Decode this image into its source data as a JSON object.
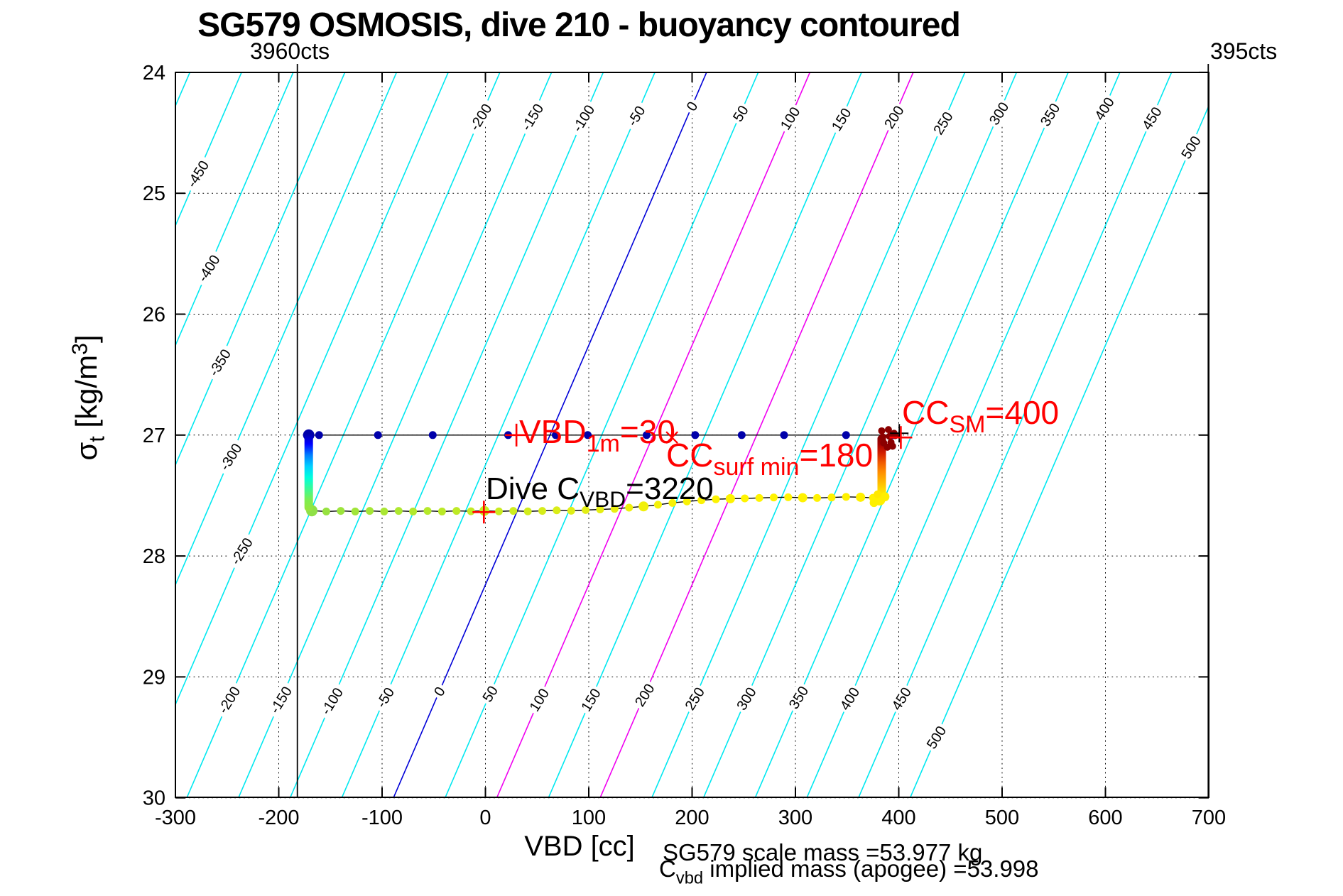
{
  "figure": {
    "title": "SG579 OSMOSIS, dive 210 - buoyancy contoured",
    "xlabel": "VBD [cc]",
    "ylabel_parts": {
      "sym": "σ",
      "sub": "t",
      "mid": " [kg/m",
      "sup": "3",
      "end": "]"
    },
    "footer_line1": "SG579 scale mass =53.977 kg",
    "footer_line2": {
      "main": "C",
      "sub": "vbd",
      "rest": " implied mass (apogee) =53.998"
    }
  },
  "chart_data": {
    "type": "scatter",
    "title": "SG579 OSMOSIS, dive 210 - buoyancy contoured",
    "xlabel": "VBD [cc]",
    "ylabel": "sigma_t [kg/m3]",
    "xlim": [
      -300,
      700
    ],
    "ylim": [
      24,
      30
    ],
    "y_axis_reversed": true,
    "xticks": [
      -300,
      -200,
      -100,
      0,
      100,
      200,
      300,
      400,
      500,
      600,
      700
    ],
    "yticks": [
      24,
      25,
      26,
      27,
      28,
      29,
      30
    ],
    "grid": "dotted",
    "contours": {
      "comment": "buoyancy [g] contours in sigma_t vs VBD space; straight lines; level-0 line passes VBD=214cc at sigma=24 with slope dcc/dsigma",
      "level_min": -500,
      "level_max": 500,
      "level_step": 50,
      "x_offset_sigma24": 214,
      "dcc_dsigma": -50.5,
      "color_default": "#00E8F0",
      "color_zero": "#0000D8",
      "magenta_levels": [
        100,
        200
      ],
      "color_magenta": "#F000F0",
      "labels": [
        {
          "level": -450,
          "sigmas": [
            24.84
          ]
        },
        {
          "level": -400,
          "sigmas": [
            25.62
          ]
        },
        {
          "level": -350,
          "sigmas": [
            26.4
          ]
        },
        {
          "level": -300,
          "sigmas": [
            27.18
          ]
        },
        {
          "level": -250,
          "sigmas": [
            27.96
          ]
        },
        {
          "level": -200,
          "sigmas": [
            24.37,
            29.19
          ]
        },
        {
          "level": -150,
          "sigmas": [
            24.37,
            29.19
          ]
        },
        {
          "level": -100,
          "sigmas": [
            24.38,
            29.2
          ]
        },
        {
          "level": -50,
          "sigmas": [
            24.36,
            29.17
          ]
        },
        {
          "level": 0,
          "sigmas": [
            24.28,
            29.12
          ]
        },
        {
          "level": 50,
          "sigmas": [
            24.34,
            29.14
          ]
        },
        {
          "level": 100,
          "sigmas": [
            24.38,
            29.19
          ]
        },
        {
          "level": 150,
          "sigmas": [
            24.39,
            29.19
          ]
        },
        {
          "level": 200,
          "sigmas": [
            24.37,
            29.15
          ]
        },
        {
          "level": 250,
          "sigmas": [
            24.42,
            29.18
          ]
        },
        {
          "level": 300,
          "sigmas": [
            24.34,
            29.18
          ]
        },
        {
          "level": 350,
          "sigmas": [
            24.35,
            29.17
          ]
        },
        {
          "level": 400,
          "sigmas": [
            24.3,
            29.18
          ]
        },
        {
          "level": 450,
          "sigmas": [
            24.38,
            29.18
          ]
        },
        {
          "level": 500,
          "sigmas": [
            24.62,
            29.5
          ]
        }
      ]
    },
    "reference_lines": [
      {
        "label": "3960cts",
        "cc": -182
      },
      {
        "label": "395cts",
        "cc": 699.5
      }
    ],
    "surface_series": {
      "sigma": 27.0,
      "color": "#0000AA",
      "line_color": "#000000",
      "points_cc": [
        -171,
        -161,
        -104,
        -51,
        22,
        68,
        99,
        156,
        203,
        248,
        289,
        349,
        394
      ]
    },
    "apogee_cluster": {
      "color": "#8B0000",
      "points": [
        [
          383.5,
          26.965
        ],
        [
          390.0,
          26.955
        ],
        [
          395.5,
          26.985
        ],
        [
          384.5,
          27.015
        ],
        [
          391.0,
          27.01
        ],
        [
          396.5,
          27.005
        ],
        [
          385.5,
          27.065
        ],
        [
          392.5,
          27.06
        ],
        [
          389.0,
          27.1
        ],
        [
          394.0,
          27.092
        ]
      ]
    },
    "descent_column": {
      "cc": -171,
      "sigma_from": 26.98,
      "sigma_to": 27.63,
      "gradient": [
        "#0000A0",
        "#0000FF",
        "#0080FF",
        "#00D0FF",
        "#00FFDC",
        "#3CFA96",
        "#7DEE50",
        "#9BE43C"
      ]
    },
    "climb_column": {
      "cc": 383.5,
      "sigma_from": 27.0,
      "sigma_to": 27.53,
      "gradient": [
        "#800000",
        "#A50000",
        "#D42000",
        "#F05A00",
        "#FF8C00",
        "#FFB400",
        "#FFDC00",
        "#FFF000"
      ],
      "base_blobs": [
        [
          381.5,
          27.535,
          8,
          "#FFF000"
        ],
        [
          376.0,
          27.56,
          6,
          "#FDF000"
        ],
        [
          386.5,
          27.51,
          6.5,
          "#FFEE00"
        ],
        [
          379.5,
          27.49,
          5.5,
          "#FFE800"
        ]
      ]
    },
    "dive_series": {
      "line_color": "#000000",
      "points": [
        [
          -168,
          27.625,
          "#8FE046",
          8
        ],
        [
          -154,
          27.632,
          "#97E240",
          5.5
        ],
        [
          -140,
          27.627,
          "#9CE43C",
          5.5
        ],
        [
          -126,
          27.632,
          "#A1E539",
          5.5
        ],
        [
          -112,
          27.627,
          "#A5E636",
          5.5
        ],
        [
          -98,
          27.632,
          "#AAE733",
          5.5
        ],
        [
          -84,
          27.627,
          "#AEE830",
          5.5
        ],
        [
          -70,
          27.632,
          "#B2E82D",
          5.5
        ],
        [
          -56,
          27.627,
          "#B6E92B",
          5.5
        ],
        [
          -42,
          27.632,
          "#BAE928",
          5.5
        ],
        [
          -28,
          27.627,
          "#BEEA26",
          5.5
        ],
        [
          -14,
          27.63,
          "#C2EA24",
          5.5
        ],
        [
          -1,
          27.627,
          "#C6EB22",
          7
        ],
        [
          13,
          27.631,
          "#CAEB20",
          5.5
        ],
        [
          27,
          27.627,
          "#CEEC1E",
          5.5
        ],
        [
          41,
          27.631,
          "#D2EC1C",
          5.5
        ],
        [
          55,
          27.627,
          "#D6ED1A",
          5.5
        ],
        [
          69,
          27.622,
          "#DAED18",
          5.5
        ],
        [
          83,
          27.626,
          "#DEEE16",
          5.5
        ],
        [
          97,
          27.62,
          "#E2EE14",
          5.5
        ],
        [
          111,
          27.615,
          "#E6EF12",
          5.5
        ],
        [
          125,
          27.61,
          "#EAEF10",
          5.5
        ],
        [
          139,
          27.6,
          "#EEF00E",
          5.5
        ],
        [
          153,
          27.59,
          "#F1F00C",
          7
        ],
        [
          167,
          27.576,
          "#F4F10A",
          5.5
        ],
        [
          181,
          27.561,
          "#F7F108",
          5.5
        ],
        [
          195,
          27.549,
          "#F9F206",
          5.5
        ],
        [
          209,
          27.539,
          "#FBF204",
          5.5
        ],
        [
          223,
          27.531,
          "#FCF302",
          5.5
        ],
        [
          237,
          27.526,
          "#FEF300",
          6.5
        ],
        [
          251,
          27.524,
          "#FFF400",
          5.5
        ],
        [
          265,
          27.52,
          "#FFF400",
          5.5
        ],
        [
          279,
          27.516,
          "#FFF300",
          5.5
        ],
        [
          293,
          27.514,
          "#FFF300",
          5.5
        ],
        [
          307,
          27.518,
          "#FFF200",
          6.5
        ],
        [
          321,
          27.52,
          "#FFF200",
          5.5
        ],
        [
          335,
          27.516,
          "#FFF100",
          5.5
        ],
        [
          349,
          27.511,
          "#FFF100",
          5.5
        ],
        [
          363,
          27.514,
          "#FFF000",
          6.5
        ],
        [
          375,
          27.519,
          "#FFF000",
          5.5
        ],
        [
          382,
          27.524,
          "#FFEE00",
          5.5
        ]
      ]
    },
    "annotations": [
      {
        "id": "vbd_1m",
        "main": "VBD",
        "sub": "1m",
        "eq": "=30",
        "value": 30,
        "color": "#FF0000",
        "marker": "plus",
        "cc": 30,
        "sigma": 27.0
      },
      {
        "id": "cc_surf_min",
        "main": "CC",
        "sub": "surf min",
        "eq": "=180",
        "value": 180,
        "color": "#FF0000",
        "marker": "x",
        "cc": 180.5,
        "sigma": 27.02
      },
      {
        "id": "cc_sm",
        "main": "CC",
        "sub": "SM",
        "eq": "=400",
        "value": 400,
        "color": "#FF0000",
        "marker": "plus",
        "cc": 402,
        "sigma": 27.02,
        "marker2": "plus_black",
        "cc2": 400.5,
        "sigma2": 26.985
      },
      {
        "id": "dive_c_vbd",
        "main": "Dive C",
        "sub": "VBD",
        "eq": "=3220",
        "value": 3220,
        "color": "#FF0000",
        "marker": "plus",
        "cc": -1.5,
        "sigma": 27.637
      }
    ],
    "annotation_labels": {
      "left_line": "3960cts",
      "right_line": "395cts",
      "scale_mass": "SG579 scale mass =53.977 kg",
      "implied_mass": "C_vbd implied mass (apogee) =53.998"
    }
  }
}
